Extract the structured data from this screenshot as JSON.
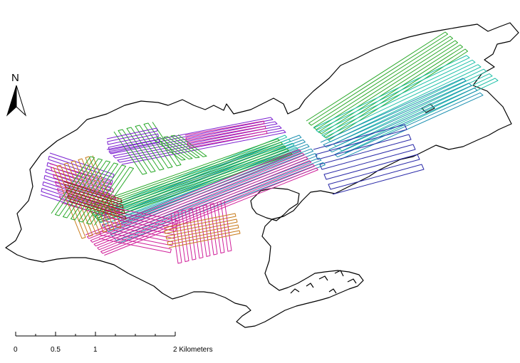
{
  "north_arrow": {
    "label": "N"
  },
  "scale_bar": {
    "ticks": [
      "0",
      "0.5",
      "1",
      "2 Kilometers"
    ]
  },
  "colors": {
    "coastline": "#000000",
    "survey_tracks": [
      "#7b1fd0",
      "#d0209a",
      "#28a828",
      "#1a8fb0",
      "#1ec0a8",
      "#2a2aa8",
      "#c87a18",
      "#9a1a1a"
    ]
  },
  "icons": {
    "north_arrow": "north-arrow-icon"
  }
}
